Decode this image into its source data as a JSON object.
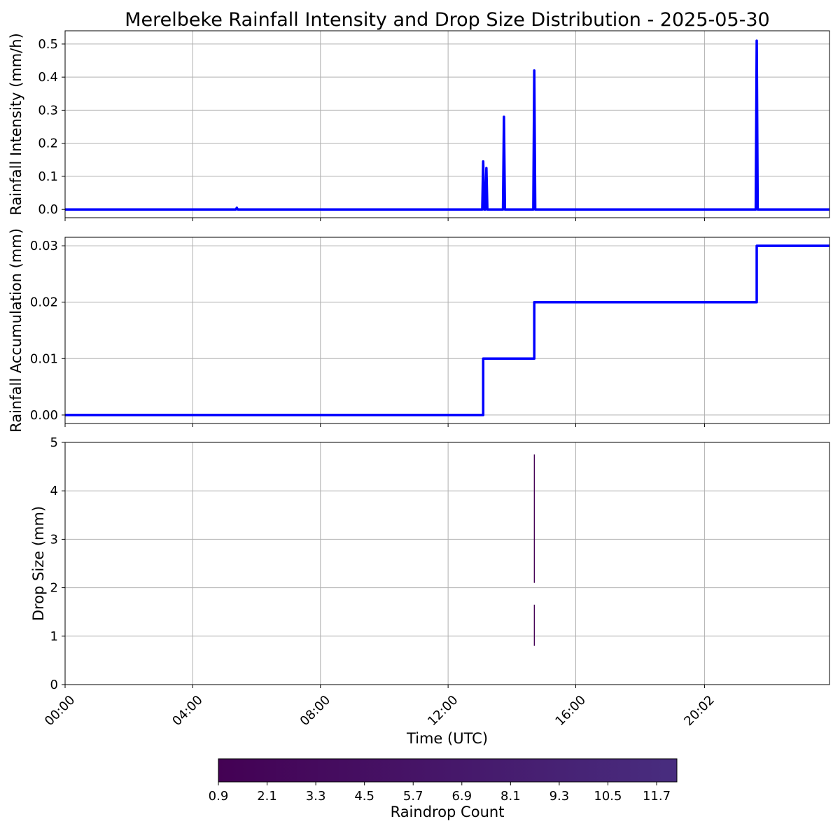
{
  "chart_data": {
    "title": "Merelbeke Rainfall Intensity and Drop Size Distribution - 2025-05-30",
    "xlabel": "Time (UTC)",
    "x_ticks": [
      "00:00",
      "04:00",
      "08:00",
      "12:00",
      "16:00",
      "20:02"
    ],
    "x_tick_hours": [
      0,
      4,
      8,
      12,
      16,
      20.033
    ],
    "xlim_hours": [
      0,
      23.95
    ],
    "line_color": "#0000ff",
    "panels": [
      {
        "type": "line",
        "ylabel": "Rainfall Intensity (mm/h)",
        "ylim": [
          -0.025,
          0.54
        ],
        "y_ticks": [
          "0.0",
          "0.1",
          "0.2",
          "0.3",
          "0.4",
          "0.5"
        ],
        "y_tick_values": [
          0,
          0.1,
          0.2,
          0.3,
          0.4,
          0.5
        ],
        "grid": true,
        "series": [
          {
            "x_hours": [
              0,
              5.35,
              5.38,
              5.41,
              13.07,
              13.1,
              13.13,
              13.17,
              13.2,
              13.23,
              13.72,
              13.75,
              13.78,
              14.67,
              14.7,
              14.73,
              21.64,
              21.67,
              21.7,
              23.95
            ],
            "values": [
              0,
              0,
              0.005,
              0,
              0,
              0.145,
              0,
              0,
              0.125,
              0,
              0,
              0.28,
              0,
              0,
              0.42,
              0,
              0,
              0.51,
              0,
              0
            ]
          }
        ]
      },
      {
        "type": "line",
        "ylabel": "Rainfall Accumulation (mm)",
        "ylim": [
          -0.0015,
          0.0315
        ],
        "y_ticks": [
          "0.00",
          "0.01",
          "0.02",
          "0.03"
        ],
        "y_tick_values": [
          0,
          0.01,
          0.02,
          0.03
        ],
        "grid": true,
        "series": [
          {
            "x_hours": [
              0,
              13.1,
              13.1,
              14.7,
              14.7,
              21.67,
              21.67,
              23.95
            ],
            "values": [
              0,
              0,
              0.01,
              0.01,
              0.02,
              0.02,
              0.03,
              0.03
            ]
          }
        ]
      },
      {
        "type": "heatmap",
        "ylabel": "Drop Size (mm)",
        "ylim": [
          0,
          5
        ],
        "y_ticks": [
          "0",
          "1",
          "2",
          "3",
          "4",
          "5"
        ],
        "y_tick_values": [
          0,
          1,
          2,
          3,
          4,
          5
        ],
        "grid": true,
        "cells": [
          {
            "x_hours": 14.7,
            "y_from": 0.8,
            "y_to": 1.65,
            "count": 1
          },
          {
            "x_hours": 14.7,
            "y_from": 2.1,
            "y_to": 4.75,
            "count": 1
          }
        ]
      }
    ],
    "colorbar": {
      "label": "Raindrop Count",
      "ticks": [
        "0.9",
        "2.1",
        "3.3",
        "4.5",
        "5.7",
        "6.9",
        "8.1",
        "9.3",
        "10.5",
        "11.7"
      ],
      "tick_values": [
        0.9,
        2.1,
        3.3,
        4.5,
        5.7,
        6.9,
        8.1,
        9.3,
        10.5,
        11.7
      ],
      "range": [
        0.9,
        12.2
      ],
      "colormap": "viridis (partial: purple range)",
      "color_low": "#440154",
      "color_high": "#482d7f"
    }
  }
}
